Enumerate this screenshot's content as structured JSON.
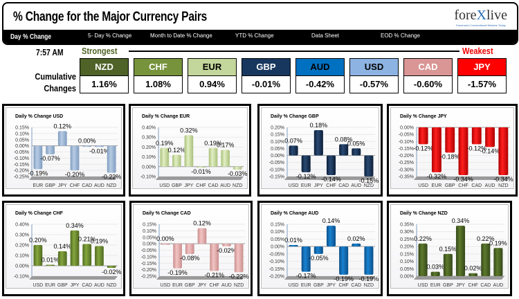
{
  "header": {
    "title": "% Change for the Major Currency Pairs",
    "logo_text": "forexlive",
    "logo_tagline": "Tomorrow's Conventional Wisdom Today"
  },
  "nav": [
    {
      "label": "Day % Change",
      "active": true
    },
    {
      "label": "5- Day % Change"
    },
    {
      "label": "Month to Date % Change"
    },
    {
      "label": "YTD % Change"
    },
    {
      "label": "Data Sheet"
    },
    {
      "label": "EOD % Change"
    }
  ],
  "summary": {
    "time": "7:57 AM",
    "strongest_label": "Strongest",
    "weakest_label": "Weakest",
    "row_label": "Cumulative Changes",
    "currencies": [
      {
        "code": "NZD",
        "value": "1.16%",
        "color": "#4f6228",
        "text": "#ffffff"
      },
      {
        "code": "CHF",
        "value": "1.08%",
        "color": "#77933c",
        "text": "#ffffff"
      },
      {
        "code": "EUR",
        "value": "0.94%",
        "color": "#c3d69b",
        "text": "#000000"
      },
      {
        "code": "GBP",
        "value": "-0.01%",
        "color": "#17375e",
        "text": "#ffffff"
      },
      {
        "code": "AUD",
        "value": "-0.42%",
        "color": "#0070c0",
        "text": "#000000"
      },
      {
        "code": "USD",
        "value": "-0.57%",
        "color": "#8db3e2",
        "text": "#000000"
      },
      {
        "code": "CAD",
        "value": "-0.60%",
        "color": "#d99694",
        "text": "#ffffff"
      },
      {
        "code": "JPY",
        "value": "-1.57%",
        "color": "#ff0000",
        "text": "#ffffff"
      }
    ]
  },
  "chart_data": [
    {
      "type": "bar",
      "title": "Daily % Change USD",
      "categories": [
        "EUR",
        "GBP",
        "JPY",
        "CHF",
        "CAD",
        "AUD",
        "NZD"
      ],
      "values": [
        -0.19,
        -0.07,
        0.12,
        -0.2,
        0.0,
        -0.01,
        -0.22
      ],
      "ylim": [
        -0.25,
        0.15
      ],
      "ystep": 0.05,
      "color": "#b8cce4",
      "dark": "#7f9cc0"
    },
    {
      "type": "bar",
      "title": "Daily % Change EUR",
      "categories": [
        "USD",
        "GBP",
        "JPY",
        "CHF",
        "CAD",
        "AUD",
        "NZD"
      ],
      "values": [
        0.19,
        0.12,
        0.32,
        -0.01,
        0.19,
        0.17,
        -0.03
      ],
      "ylim": [
        -0.1,
        0.4
      ],
      "ystep": 0.1,
      "color": "#e2efc4",
      "dark": "#a9c07a"
    },
    {
      "type": "bar",
      "title": "Daily % Change GBP",
      "categories": [
        "USD",
        "EUR",
        "JPY",
        "CHF",
        "CAD",
        "AUD",
        "NZD"
      ],
      "values": [
        0.07,
        -0.12,
        0.18,
        -0.14,
        0.08,
        0.05,
        -0.15
      ],
      "ylim": [
        -0.15,
        0.2
      ],
      "ystep": 0.05,
      "color": "#2a4a73",
      "dark": "#0d1f38"
    },
    {
      "type": "bar",
      "title": "Daily % Change JPY",
      "categories": [
        "USD",
        "EUR",
        "GBP",
        "CHF",
        "CAD",
        "AUD",
        "NZD"
      ],
      "values": [
        -0.12,
        -0.32,
        -0.18,
        -0.34,
        -0.12,
        -0.14,
        -0.34
      ],
      "ylim": [
        -0.35,
        0.0
      ],
      "ystep": 0.05,
      "color": "#ff2020",
      "dark": "#b00000"
    },
    {
      "type": "bar",
      "title": "Daily % Change CHF",
      "categories": [
        "USD",
        "EUR",
        "GBP",
        "JPY",
        "CAD",
        "AUD",
        "NZD"
      ],
      "values": [
        0.2,
        0.01,
        0.14,
        0.34,
        0.21,
        0.19,
        -0.02
      ],
      "ylim": [
        -0.1,
        0.4
      ],
      "ystep": 0.1,
      "color": "#86a63f",
      "dark": "#4f6a1f"
    },
    {
      "type": "bar",
      "title": "Daily % Change CAD",
      "categories": [
        "USD",
        "EUR",
        "GBP",
        "JPY",
        "CHF",
        "AUD",
        "NZD"
      ],
      "values": [
        0.0,
        -0.19,
        -0.08,
        0.12,
        -0.21,
        -0.02,
        -0.22
      ],
      "ylim": [
        -0.25,
        0.15
      ],
      "ystep": 0.05,
      "color": "#f2c4c3",
      "dark": "#c98f8e"
    },
    {
      "type": "bar",
      "title": "Daily % Change AUD",
      "categories": [
        "USD",
        "EUR",
        "GBP",
        "JPY",
        "CHF",
        "CAD",
        "NZD"
      ],
      "values": [
        0.01,
        -0.17,
        -0.05,
        0.14,
        -0.19,
        0.02,
        -0.19
      ],
      "ylim": [
        -0.2,
        0.15
      ],
      "ystep": 0.05,
      "color": "#1a82d0",
      "dark": "#0a4f8a"
    },
    {
      "type": "bar",
      "title": "Daily % Change NZD",
      "categories": [
        "USD",
        "EUR",
        "GBP",
        "JPY",
        "CHF",
        "CAD",
        "AUD"
      ],
      "values": [
        0.22,
        0.03,
        0.15,
        0.34,
        0.02,
        0.22,
        0.19
      ],
      "ylim": [
        0.0,
        0.35
      ],
      "ystep": 0.05,
      "color": "#5e7a2c",
      "dark": "#34481a"
    }
  ]
}
